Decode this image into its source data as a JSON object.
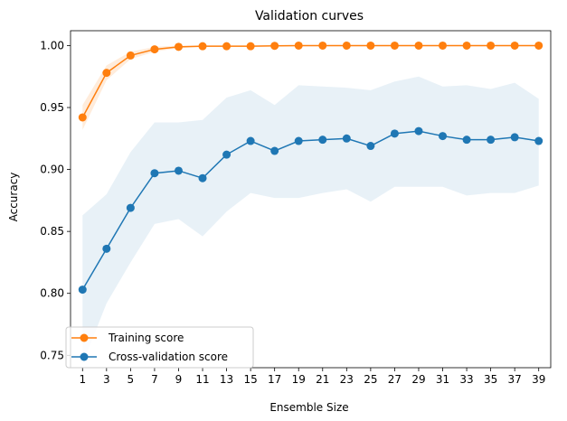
{
  "chart_data": {
    "type": "line",
    "title": "Validation curves",
    "xlabel": "Ensemble Size",
    "ylabel": "Accuracy",
    "xlim": [
      0,
      40
    ],
    "ylim": [
      0.74,
      1.012
    ],
    "x": [
      1,
      3,
      5,
      7,
      9,
      11,
      13,
      15,
      17,
      19,
      21,
      23,
      25,
      27,
      29,
      31,
      33,
      35,
      37,
      39
    ],
    "x_tick_labels": [
      "1",
      "3",
      "5",
      "7",
      "9",
      "11",
      "13",
      "15",
      "17",
      "19",
      "21",
      "23",
      "25",
      "27",
      "29",
      "31",
      "33",
      "35",
      "37",
      "39"
    ],
    "y_ticks": [
      0.75,
      0.8,
      0.85,
      0.9,
      0.95,
      1.0
    ],
    "y_tick_labels": [
      "0.75",
      "0.80",
      "0.85",
      "0.90",
      "0.95",
      "1.00"
    ],
    "legend_position": "lower-left",
    "series": [
      {
        "name": "Training score",
        "color": "#ff7f0e",
        "values": [
          0.942,
          0.978,
          0.992,
          0.997,
          0.999,
          0.9995,
          0.9995,
          0.9995,
          0.9998,
          1.0,
          1.0,
          1.0,
          1.0,
          1.0,
          1.0,
          1.0,
          1.0,
          1.0,
          1.0,
          1.0
        ],
        "band_lower": [
          0.932,
          0.972,
          0.989,
          0.995,
          0.998,
          0.999,
          0.999,
          0.999,
          0.9995,
          0.9998,
          0.9998,
          1.0,
          1.0,
          1.0,
          1.0,
          1.0,
          1.0,
          1.0,
          1.0,
          1.0
        ],
        "band_upper": [
          0.952,
          0.984,
          0.995,
          0.999,
          1.0,
          1.0,
          1.0,
          1.0,
          1.0,
          1.0,
          1.0,
          1.0,
          1.0,
          1.0,
          1.0,
          1.0,
          1.0,
          1.0,
          1.0,
          1.0
        ]
      },
      {
        "name": "Cross-validation score",
        "color": "#1f77b4",
        "values": [
          0.803,
          0.836,
          0.869,
          0.897,
          0.899,
          0.893,
          0.912,
          0.923,
          0.915,
          0.923,
          0.924,
          0.925,
          0.919,
          0.929,
          0.931,
          0.927,
          0.924,
          0.924,
          0.926,
          0.923
        ],
        "band_lower": [
          0.743,
          0.792,
          0.825,
          0.856,
          0.86,
          0.846,
          0.866,
          0.881,
          0.877,
          0.877,
          0.881,
          0.884,
          0.874,
          0.886,
          0.886,
          0.886,
          0.879,
          0.881,
          0.881,
          0.887
        ],
        "band_upper": [
          0.863,
          0.88,
          0.914,
          0.938,
          0.938,
          0.94,
          0.958,
          0.964,
          0.952,
          0.968,
          0.967,
          0.966,
          0.964,
          0.971,
          0.975,
          0.967,
          0.968,
          0.965,
          0.97,
          0.957
        ]
      }
    ]
  }
}
